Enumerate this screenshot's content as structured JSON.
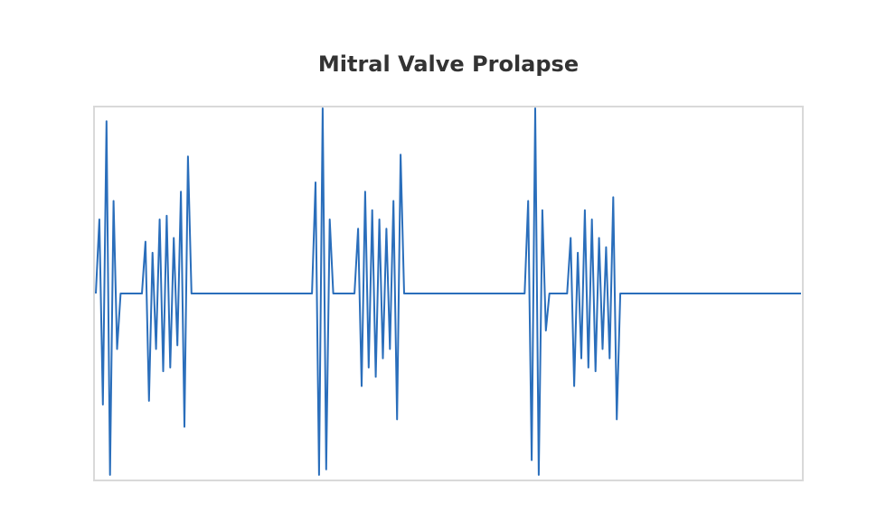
{
  "chart_data": {
    "type": "line",
    "title": "Mitral Valve Prolapse",
    "color": "#2a6ebb",
    "xlim": [
      0,
      199
    ],
    "ylim": [
      -1,
      1
    ],
    "values": [
      0,
      0.4,
      -0.6,
      0.93,
      -0.98,
      0.5,
      -0.3,
      0,
      0,
      0,
      0,
      0,
      0,
      0,
      0.28,
      -0.58,
      0.22,
      -0.3,
      0.4,
      -0.42,
      0.42,
      -0.4,
      0.3,
      -0.28,
      0.55,
      -0.72,
      0.74,
      0,
      0,
      0,
      0,
      0,
      0,
      0,
      0,
      0,
      0,
      0,
      0,
      0,
      0,
      0,
      0,
      0,
      0,
      0,
      0,
      0,
      0,
      0,
      0,
      0,
      0,
      0,
      0,
      0,
      0,
      0,
      0,
      0,
      0,
      0,
      0.6,
      -0.98,
      1.0,
      -0.95,
      0.4,
      0,
      0,
      0,
      0,
      0,
      0,
      0,
      0.35,
      -0.5,
      0.55,
      -0.4,
      0.45,
      -0.45,
      0.4,
      -0.35,
      0.35,
      -0.3,
      0.5,
      -0.68,
      0.75,
      0,
      0,
      0,
      0,
      0,
      0,
      0,
      0,
      0,
      0,
      0,
      0,
      0,
      0,
      0,
      0,
      0,
      0,
      0,
      0,
      0,
      0,
      0,
      0,
      0,
      0,
      0,
      0,
      0,
      0,
      0,
      0,
      0,
      0,
      0,
      0.5,
      -0.9,
      1.0,
      -0.98,
      0.45,
      -0.2,
      0,
      0,
      0,
      0,
      0,
      0,
      0.3,
      -0.5,
      0.22,
      -0.35,
      0.45,
      -0.4,
      0.4,
      -0.42,
      0.3,
      -0.3,
      0.25,
      -0.35,
      0.52,
      -0.68,
      0,
      0,
      0,
      0,
      0,
      0,
      0,
      0,
      0,
      0,
      0,
      0,
      0,
      0,
      0,
      0,
      0,
      0,
      0,
      0,
      0,
      0,
      0,
      0,
      0,
      0,
      0,
      0,
      0,
      0,
      0,
      0,
      0,
      0,
      0,
      0,
      0,
      0,
      0,
      0,
      0,
      0,
      0,
      0,
      0,
      0,
      0,
      0,
      0,
      0,
      0,
      0
    ]
  }
}
